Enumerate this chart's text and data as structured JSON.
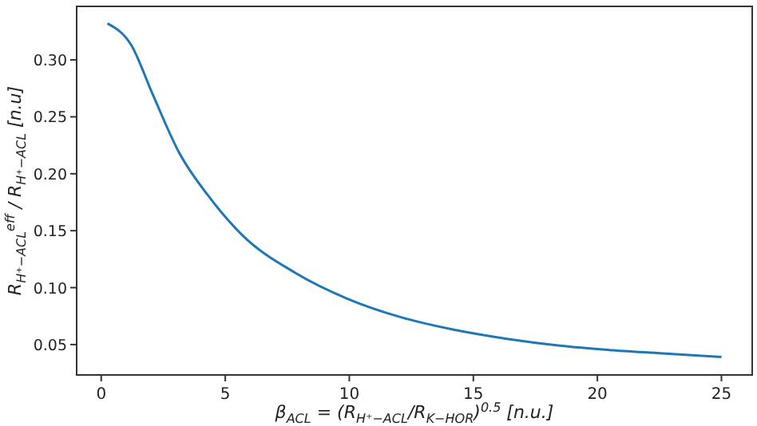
{
  "chart_data": {
    "type": "line",
    "xlabel": "β$_{ACL}$ = (R$_{H⁺−ACL}$/R$_{K−HOR}$)$^{0.5}$  [n.u.]",
    "ylabel": "R$_{H⁺−ACL}$$^{eff}$ / R$_{H⁺−ACL}$ [n.u]",
    "xlim": [
      -0.99,
      26.24
    ],
    "ylim": [
      0.0233,
      0.347
    ],
    "xticks": [
      0,
      5,
      10,
      15,
      20,
      25
    ],
    "yticks": [
      {
        "value": 0.05,
        "label": "0.05"
      },
      {
        "value": 0.1,
        "label": "0.10"
      },
      {
        "value": 0.15,
        "label": "0.15"
      },
      {
        "value": 0.2,
        "label": "0.20"
      },
      {
        "value": 0.25,
        "label": "0.25"
      },
      {
        "value": 0.3,
        "label": "0.30"
      }
    ],
    "grid": false,
    "series": [
      {
        "color": "#1f77b4",
        "x": [
          0.25,
          1.21,
          2.07,
          3.13,
          4.41,
          5.69,
          7.82,
          9.95,
          12.08,
          14.21,
          16.35,
          18.48,
          20.6,
          22.76,
          25
        ],
        "values": [
          0.332,
          0.313,
          0.27,
          0.219,
          0.178,
          0.146,
          0.113,
          0.09,
          0.074,
          0.063,
          0.055,
          0.049,
          0.045,
          0.042,
          0.039
        ]
      }
    ]
  }
}
